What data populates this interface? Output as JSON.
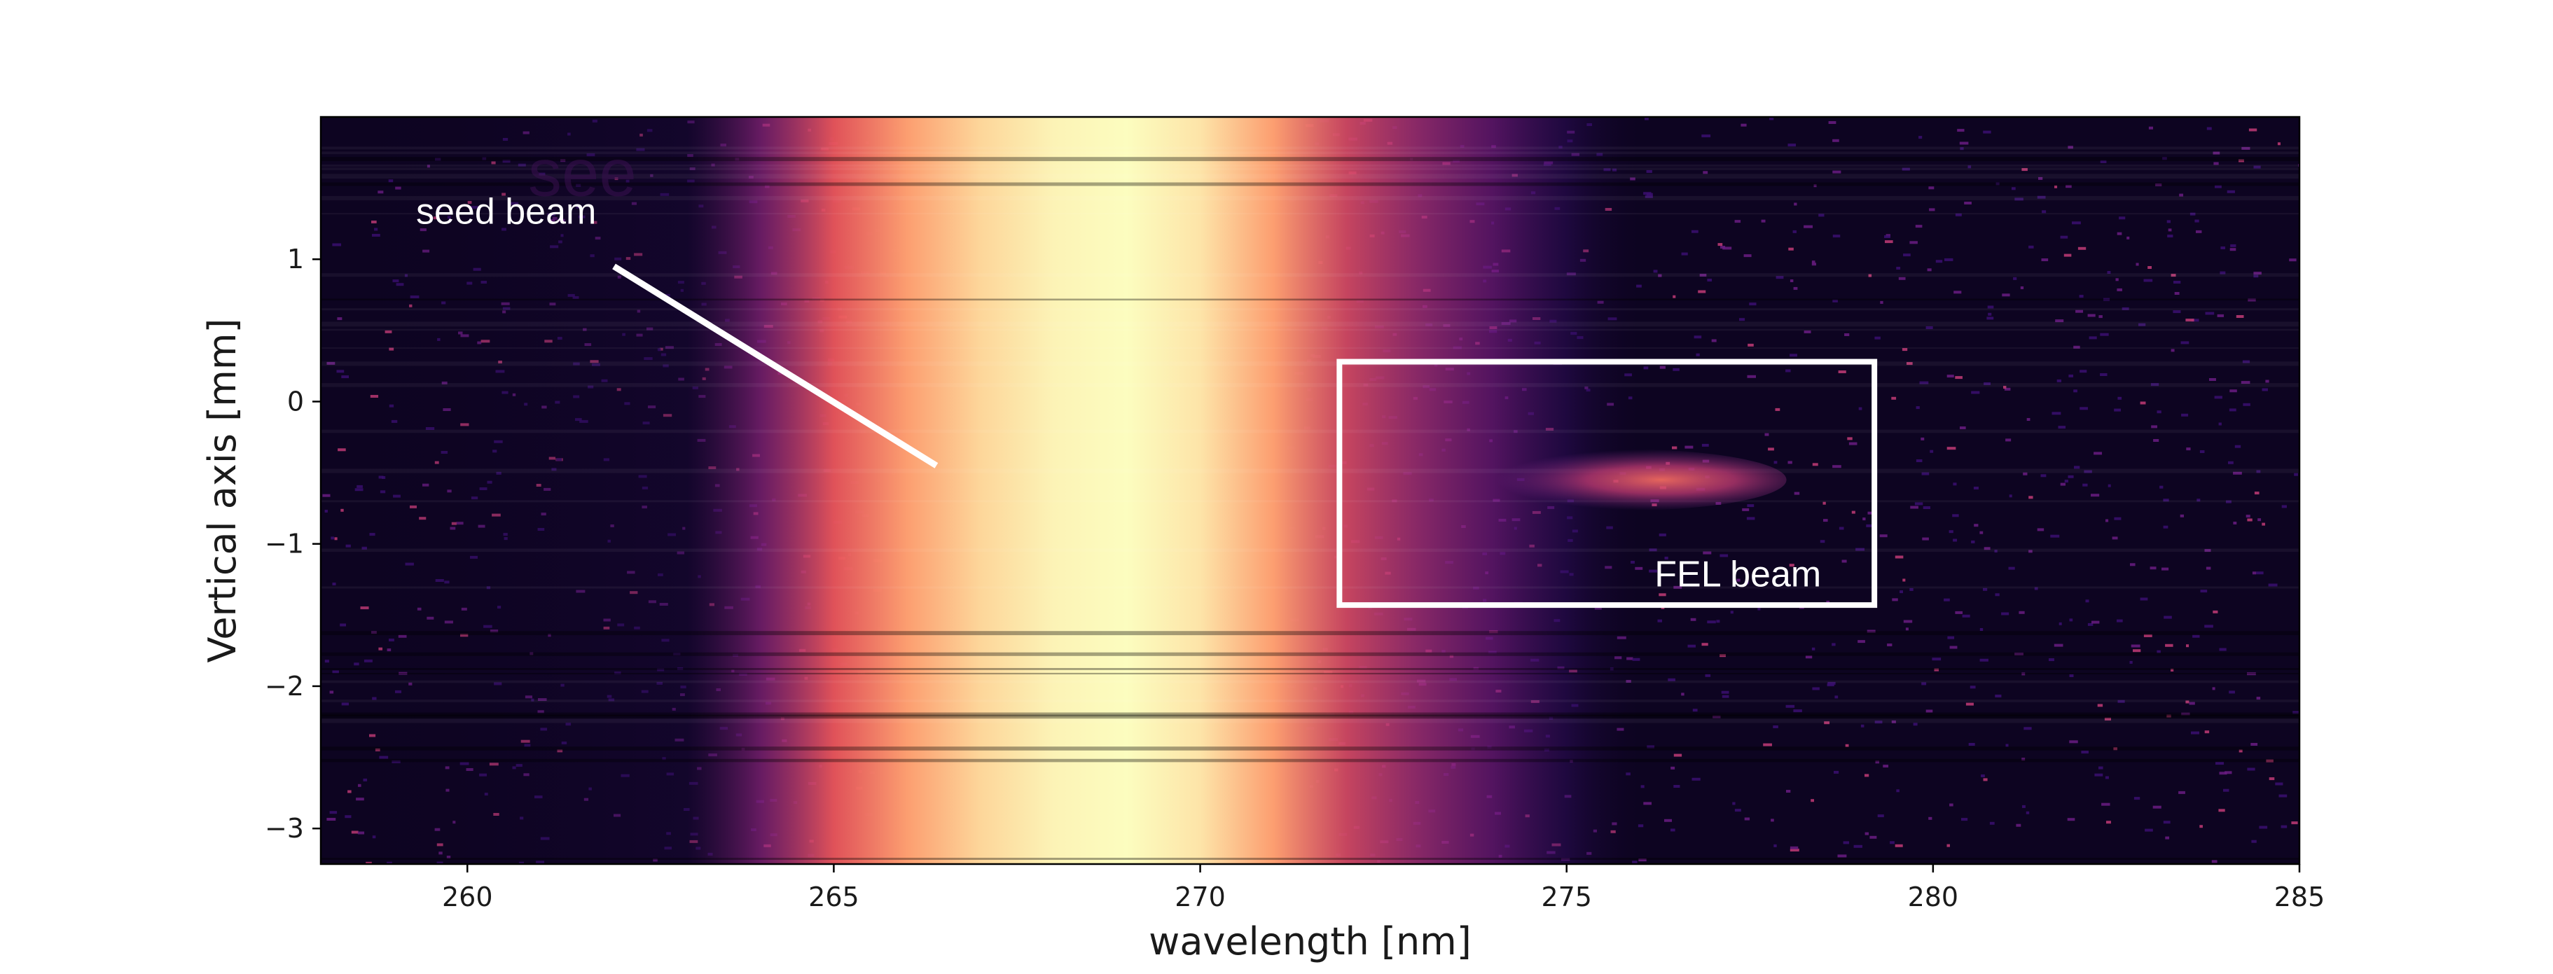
{
  "chart_data": {
    "type": "heatmap",
    "title": "",
    "xlabel": "wavelength [nm]",
    "ylabel": "Vertical axis [mm]",
    "xlim": [
      258,
      285
    ],
    "ylim": [
      -3.25,
      2.0
    ],
    "x_ticks": [
      260,
      265,
      270,
      275,
      280,
      285
    ],
    "y_ticks": [
      1,
      0,
      -1,
      -2,
      -3
    ],
    "x_tick_labels": [
      "260",
      "265",
      "270",
      "275",
      "280",
      "285"
    ],
    "y_tick_labels": [
      "1",
      "0",
      "−1",
      "−2",
      "−3"
    ],
    "colormap": "magma",
    "seed_beam_intensity_profile": {
      "wavelength_nm": [
        258,
        263,
        264,
        265,
        266,
        267,
        268,
        269,
        270,
        271,
        272,
        273,
        274,
        275,
        276,
        285
      ],
      "relative_intensity": [
        0.0,
        0.05,
        0.35,
        0.6,
        0.8,
        0.92,
        0.98,
        1.0,
        0.95,
        0.8,
        0.55,
        0.42,
        0.3,
        0.12,
        0.02,
        0.0
      ]
    },
    "fel_beam_feature": {
      "wavelength_start_nm": 273.5,
      "wavelength_end_nm": 278.0,
      "vertical_mm": -0.55
    },
    "annotations": [
      {
        "text": "seed beam",
        "x": 259.3,
        "y": 1.25
      },
      {
        "text": "FEL beam",
        "x": 276.2,
        "y": -1.3
      }
    ],
    "pointer_line": {
      "x1": 262.0,
      "y1": 0.95,
      "x2": 266.4,
      "y2": -0.45
    },
    "highlight_box": {
      "x0": 271.9,
      "x1": 279.2,
      "y0": -1.43,
      "y1": 0.28
    },
    "ghost_text": "see",
    "colors": {
      "background_low": "#0d0421",
      "mid": "#8c2981",
      "high": "#fcfdbf",
      "annotation": "#ffffff"
    }
  }
}
